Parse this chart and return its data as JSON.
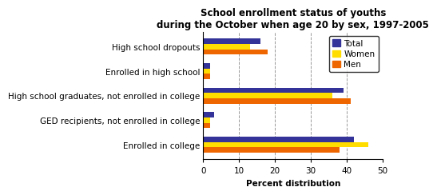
{
  "title": "School enrollment status of youths\nduring the October when age 20 by sex, 1997-2005",
  "categories": [
    "High school dropouts",
    "Enrolled in high school",
    "High school graduates, not enrolled in college",
    "GED recipients, not enrolled in college",
    "Enrolled in college"
  ],
  "series": {
    "Total": [
      16,
      2,
      39,
      3,
      42
    ],
    "Women": [
      13,
      2,
      36,
      2,
      46
    ],
    "Men": [
      18,
      2,
      41,
      2,
      38
    ]
  },
  "colors": {
    "Total": "#333399",
    "Women": "#ffdd00",
    "Men": "#ee6600"
  },
  "xlim": [
    0,
    50
  ],
  "xticks": [
    0,
    10,
    20,
    30,
    40,
    50
  ],
  "xlabel": "Percent distribution",
  "legend_order": [
    "Total",
    "Women",
    "Men"
  ],
  "background_color": "#ffffff",
  "grid_color": "#999999",
  "bar_height": 0.22,
  "title_fontsize": 8.5,
  "axis_fontsize": 7.5,
  "tick_fontsize": 7.5,
  "legend_fontsize": 7.5
}
